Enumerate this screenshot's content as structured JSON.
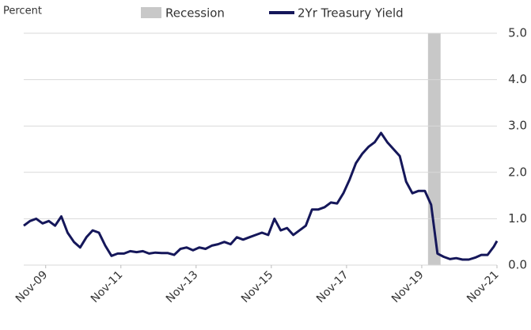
{
  "chart_data": {
    "type": "line",
    "y_axis_label": "Percent",
    "x": [
      "2009-04",
      "2009-06",
      "2009-08",
      "2009-10",
      "2009-12",
      "2010-02",
      "2010-04",
      "2010-06",
      "2010-08",
      "2010-10",
      "2010-12",
      "2011-02",
      "2011-04",
      "2011-06",
      "2011-08",
      "2011-10",
      "2011-12",
      "2012-02",
      "2012-04",
      "2012-06",
      "2012-08",
      "2012-10",
      "2012-12",
      "2013-02",
      "2013-04",
      "2013-06",
      "2013-08",
      "2013-10",
      "2013-12",
      "2014-02",
      "2014-04",
      "2014-06",
      "2014-08",
      "2014-10",
      "2014-12",
      "2015-02",
      "2015-04",
      "2015-06",
      "2015-08",
      "2015-10",
      "2015-12",
      "2016-02",
      "2016-04",
      "2016-06",
      "2016-08",
      "2016-10",
      "2016-12",
      "2017-02",
      "2017-04",
      "2017-06",
      "2017-08",
      "2017-10",
      "2017-12",
      "2018-02",
      "2018-04",
      "2018-06",
      "2018-08",
      "2018-10",
      "2018-12",
      "2019-02",
      "2019-04",
      "2019-06",
      "2019-08",
      "2019-10",
      "2019-12",
      "2020-02",
      "2020-04",
      "2020-06",
      "2020-08",
      "2020-10",
      "2020-12",
      "2021-02",
      "2021-04",
      "2021-06",
      "2021-08",
      "2021-10",
      "2021-11"
    ],
    "series": [
      {
        "name": "2Yr Treasury Yield",
        "color": "#15175a",
        "values": [
          0.85,
          0.95,
          1.0,
          0.9,
          0.95,
          0.85,
          1.05,
          0.7,
          0.5,
          0.38,
          0.6,
          0.75,
          0.7,
          0.42,
          0.2,
          0.25,
          0.25,
          0.3,
          0.28,
          0.3,
          0.25,
          0.27,
          0.26,
          0.26,
          0.22,
          0.35,
          0.38,
          0.32,
          0.38,
          0.35,
          0.42,
          0.45,
          0.5,
          0.45,
          0.6,
          0.55,
          0.6,
          0.65,
          0.7,
          0.65,
          1.0,
          0.75,
          0.8,
          0.65,
          0.75,
          0.85,
          1.2,
          1.2,
          1.25,
          1.35,
          1.33,
          1.55,
          1.85,
          2.2,
          2.4,
          2.55,
          2.65,
          2.85,
          2.65,
          2.5,
          2.35,
          1.8,
          1.55,
          1.6,
          1.6,
          1.3,
          0.25,
          0.18,
          0.13,
          0.15,
          0.12,
          0.12,
          0.16,
          0.22,
          0.22,
          0.4,
          0.52
        ]
      }
    ],
    "recession": {
      "name": "Recession",
      "start": "2020-02",
      "end": "2020-04",
      "color": "#c8c8c8"
    },
    "xlim": [
      "2009-04",
      "2021-11"
    ],
    "xticks": [
      {
        "value": "2009-11",
        "label": "Nov-09"
      },
      {
        "value": "2011-11",
        "label": "Nov-11"
      },
      {
        "value": "2013-11",
        "label": "Nov-13"
      },
      {
        "value": "2015-11",
        "label": "Nov-15"
      },
      {
        "value": "2017-11",
        "label": "Nov-17"
      },
      {
        "value": "2019-11",
        "label": "Nov-19"
      },
      {
        "value": "2021-11",
        "label": "Nov-21"
      }
    ],
    "ylim": [
      0,
      5
    ],
    "yticks": [
      {
        "value": 0,
        "label": "0.0"
      },
      {
        "value": 1,
        "label": "1.0"
      },
      {
        "value": 2,
        "label": "2.0"
      },
      {
        "value": 3,
        "label": "3.0"
      },
      {
        "value": 4,
        "label": "4.0"
      },
      {
        "value": 5,
        "label": "5.0"
      }
    ],
    "grid": true
  }
}
